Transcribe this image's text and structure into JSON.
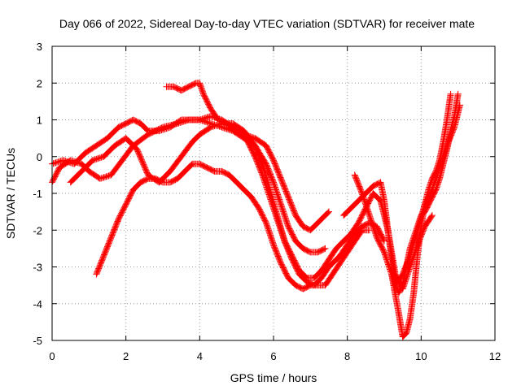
{
  "chart_data": {
    "type": "scatter",
    "title": "Day 066 of 2022, Sidereal Day-to-day VTEC variation (SDTVAR) for receiver mate",
    "xlabel": "GPS time / hours",
    "ylabel": "SDTVAR / TECUs",
    "xlim": [
      0,
      12
    ],
    "ylim": [
      -5,
      3
    ],
    "xticks": [
      0,
      2,
      4,
      6,
      8,
      10,
      12
    ],
    "yticks": [
      -5,
      -4,
      -3,
      -2,
      -1,
      0,
      1,
      2,
      3
    ],
    "grid": true,
    "marker": "+",
    "color": "#ff0000",
    "series": [
      {
        "x": [
          0.0,
          0.2,
          0.5,
          0.8,
          1.0,
          1.3,
          1.6,
          1.9,
          2.2,
          2.6,
          3.0,
          3.4,
          3.7,
          4.0,
          4.3,
          4.6,
          4.9,
          5.2,
          5.5,
          5.8,
          6.0,
          6.2,
          6.4,
          6.6,
          6.8,
          7.0,
          7.2,
          7.4
        ],
        "y": [
          -0.7,
          -0.3,
          -0.1,
          -0.2,
          -0.4,
          -0.6,
          -0.5,
          -0.1,
          0.3,
          0.6,
          0.8,
          0.9,
          1.0,
          1.0,
          0.9,
          0.8,
          0.7,
          0.5,
          0.3,
          -0.2,
          -0.7,
          -1.3,
          -1.9,
          -2.3,
          -2.5,
          -2.6,
          -2.6,
          -2.5
        ]
      },
      {
        "x": [
          0.0,
          0.3,
          0.6,
          0.9,
          1.2,
          1.5,
          1.8,
          2.0,
          2.2,
          2.4,
          2.6,
          2.9,
          3.2,
          3.5,
          3.8,
          4.0,
          4.3,
          4.6,
          4.9,
          5.2,
          5.5,
          5.8,
          6.0,
          6.2,
          6.4,
          6.6,
          6.8,
          7.0,
          7.2,
          7.5
        ],
        "y": [
          -0.2,
          -0.1,
          -0.2,
          0.1,
          0.3,
          0.5,
          0.8,
          0.9,
          1.0,
          0.9,
          0.7,
          0.7,
          0.8,
          1.0,
          1.0,
          1.0,
          1.1,
          1.0,
          0.8,
          0.6,
          0.5,
          0.3,
          -0.1,
          -0.6,
          -1.1,
          -1.6,
          -1.9,
          -2.0,
          -1.8,
          -1.5
        ]
      },
      {
        "x": [
          0.5,
          0.8,
          1.1,
          1.4,
          1.7,
          2.0,
          2.3,
          2.6,
          2.9,
          3.2,
          3.5,
          3.8,
          4.0,
          4.3,
          4.6,
          4.9,
          5.2,
          5.5,
          5.7,
          5.9,
          6.1,
          6.3,
          6.5,
          6.7,
          6.9,
          7.1,
          7.3,
          7.5,
          7.8,
          8.0,
          8.2,
          8.4,
          8.6,
          8.8,
          9.0
        ],
        "y": [
          -0.7,
          -0.4,
          -0.1,
          0.0,
          0.3,
          0.5,
          0.2,
          -0.5,
          -0.7,
          -0.4,
          0.0,
          0.4,
          0.6,
          0.8,
          0.9,
          0.9,
          0.7,
          0.3,
          -0.2,
          -0.9,
          -1.6,
          -2.3,
          -2.8,
          -3.2,
          -3.4,
          -3.5,
          -3.3,
          -3.0,
          -2.7,
          -2.4,
          -2.1,
          -1.9,
          -1.8,
          -1.9,
          -2.3
        ]
      },
      {
        "x": [
          1.2,
          1.4,
          1.6,
          1.8,
          2.0,
          2.2,
          2.4,
          2.6,
          2.8,
          3.0,
          3.2,
          3.4,
          3.6,
          3.8,
          4.0,
          4.2,
          4.4,
          4.6,
          4.8,
          5.0,
          5.2,
          5.4,
          5.6,
          5.8,
          6.0,
          6.2,
          6.4,
          6.6,
          6.8,
          7.0,
          7.2,
          7.4,
          7.6,
          7.8,
          8.0,
          8.2,
          8.4,
          8.6
        ],
        "y": [
          -3.2,
          -2.7,
          -2.2,
          -1.7,
          -1.3,
          -0.9,
          -0.7,
          -0.6,
          -0.6,
          -0.7,
          -0.7,
          -0.6,
          -0.4,
          -0.2,
          -0.2,
          -0.3,
          -0.4,
          -0.4,
          -0.5,
          -0.7,
          -0.9,
          -1.1,
          -1.4,
          -1.8,
          -2.4,
          -2.9,
          -3.3,
          -3.5,
          -3.6,
          -3.5,
          -3.5,
          -3.5,
          -3.2,
          -2.9,
          -2.6,
          -2.3,
          -2.0,
          -2.0
        ]
      },
      {
        "x": [
          3.1,
          3.3,
          3.5,
          3.7,
          3.9,
          4.0,
          4.1,
          4.3,
          4.5,
          4.7,
          4.9,
          5.1,
          5.3,
          5.5,
          5.7,
          5.9,
          6.1,
          6.3,
          6.5,
          6.7,
          6.9,
          7.1,
          7.3,
          7.5,
          7.7,
          7.9,
          8.1,
          8.3,
          8.5,
          8.7,
          8.9,
          9.1,
          9.3,
          9.5,
          9.7,
          9.9,
          10.1,
          10.3
        ],
        "y": [
          1.9,
          1.9,
          1.8,
          1.9,
          2.0,
          2.0,
          1.7,
          1.3,
          1.0,
          0.9,
          0.8,
          0.7,
          0.4,
          0.0,
          -0.5,
          -1.1,
          -1.7,
          -2.3,
          -2.7,
          -3.1,
          -3.3,
          -3.3,
          -3.1,
          -2.8,
          -2.5,
          -2.3,
          -2.1,
          -1.8,
          -1.4,
          -1.0,
          -1.2,
          -2.0,
          -3.2,
          -3.6,
          -3.0,
          -2.4,
          -1.9,
          -1.6
        ]
      },
      {
        "x": [
          7.9,
          8.1,
          8.3,
          8.5,
          8.7,
          8.9,
          9.0,
          9.1,
          9.2,
          9.3,
          9.4,
          9.5,
          9.6,
          9.7,
          9.8,
          9.9,
          10.0,
          10.1,
          10.2,
          10.3,
          10.4,
          10.5,
          10.6,
          10.7,
          10.8,
          10.9,
          11.0
        ],
        "y": [
          -1.6,
          -1.4,
          -1.2,
          -1.0,
          -0.8,
          -0.7,
          -1.2,
          -2.0,
          -2.8,
          -3.5,
          -3.7,
          -3.5,
          -3.0,
          -2.5,
          -2.2,
          -1.9,
          -1.6,
          -1.5,
          -1.3,
          -1.1,
          -0.9,
          -0.6,
          -0.2,
          0.2,
          0.7,
          1.1,
          1.7
        ]
      },
      {
        "x": [
          8.2,
          8.4,
          8.6,
          8.8,
          9.0,
          9.2,
          9.4,
          9.5,
          9.6,
          9.7,
          9.8,
          9.9,
          10.0,
          10.1,
          10.2,
          10.3,
          10.4,
          10.5,
          10.6,
          10.7,
          10.8
        ],
        "y": [
          -0.5,
          -1.0,
          -1.6,
          -2.2,
          -2.6,
          -3.2,
          -4.3,
          -4.9,
          -4.8,
          -4.4,
          -3.7,
          -2.7,
          -1.9,
          -1.3,
          -0.9,
          -0.6,
          -0.4,
          -0.1,
          0.4,
          1.0,
          1.7
        ]
      },
      {
        "x": [
          9.1,
          9.3,
          9.5,
          9.7,
          9.9,
          10.1,
          10.3,
          10.5,
          10.7,
          10.9,
          11.05
        ],
        "y": [
          -2.9,
          -3.5,
          -3.2,
          -2.7,
          -2.0,
          -1.3,
          -0.9,
          -0.3,
          0.3,
          0.8,
          1.4
        ]
      }
    ]
  }
}
